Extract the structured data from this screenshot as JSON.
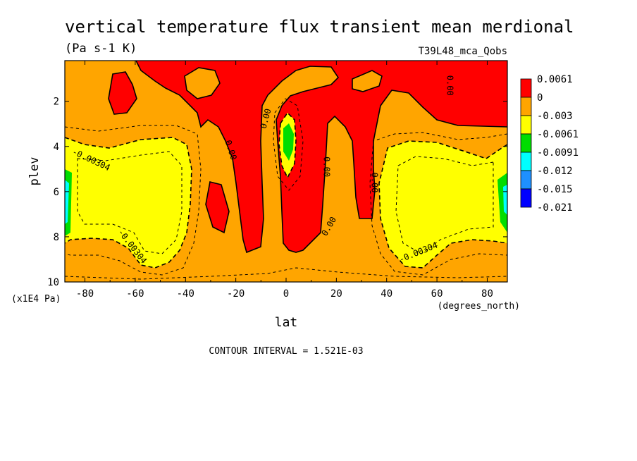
{
  "chart_data": {
    "type": "heatmap",
    "title": "vertical temperature flux transient mean merdional",
    "units": "(Pa s-1 K)",
    "dataset": "T39L48_mca_Qobs",
    "xlabel": "lat",
    "xunits": "(degrees_north)",
    "ylabel": "plev",
    "yunits": "(x1E4 Pa)",
    "xlim": [
      -88,
      88
    ],
    "ylim": [
      10,
      0.2
    ],
    "xticks": [
      -80,
      -60,
      -40,
      -20,
      0,
      20,
      40,
      60,
      80
    ],
    "xtick_labels": [
      "-80",
      "-60",
      "-40",
      "-20",
      "0",
      "20",
      "40",
      "60",
      "80"
    ],
    "yticks": [
      2,
      4,
      6,
      8,
      10
    ],
    "ytick_labels": [
      "2",
      "4",
      "6",
      "8",
      "10"
    ],
    "contour_interval_text": "CONTOUR INTERVAL = 1.521E-03",
    "contour_labels": [
      {
        "text": "-0.00304",
        "lat": -78,
        "plev": 4.7,
        "angle": 25
      },
      {
        "text": "-0.00304",
        "lat": -62,
        "plev": 8.5,
        "angle": 52
      },
      {
        "text": "-0.00304",
        "lat": 53,
        "plev": 8.8,
        "angle": -22
      },
      {
        "text": "0.00",
        "lat": -23,
        "plev": 4.2,
        "angle": 72
      },
      {
        "text": "0.00",
        "lat": -7,
        "plev": 2.8,
        "angle": -75
      },
      {
        "text": "0.00",
        "lat": 15,
        "plev": 4.9,
        "angle": 90
      },
      {
        "text": "0.00",
        "lat": 18,
        "plev": 7.6,
        "angle": -60
      },
      {
        "text": "0.00",
        "lat": 34,
        "plev": 5.6,
        "angle": 90
      },
      {
        "text": "0.00",
        "lat": 64,
        "plev": 1.3,
        "angle": 90
      }
    ],
    "colorbar": {
      "labels": [
        "0.0061",
        "0",
        "-0.003",
        "-0.0061",
        "-0.0091",
        "-0.012",
        "-0.015",
        "-0.021"
      ],
      "colors": [
        "#ff0000",
        "#ffa500",
        "#ffff00",
        "#00dd00",
        "#00ffff",
        "#1e90ff",
        "#0000ff"
      ]
    },
    "regions": {
      "background": "#ffa500",
      "positive": "#ff0000",
      "negative_1": "#ffff00",
      "negative_2": "#00dd00",
      "negative_3": "#00ffff",
      "negative_4": "#1e90ff",
      "negative_5": "#0000ff"
    }
  }
}
